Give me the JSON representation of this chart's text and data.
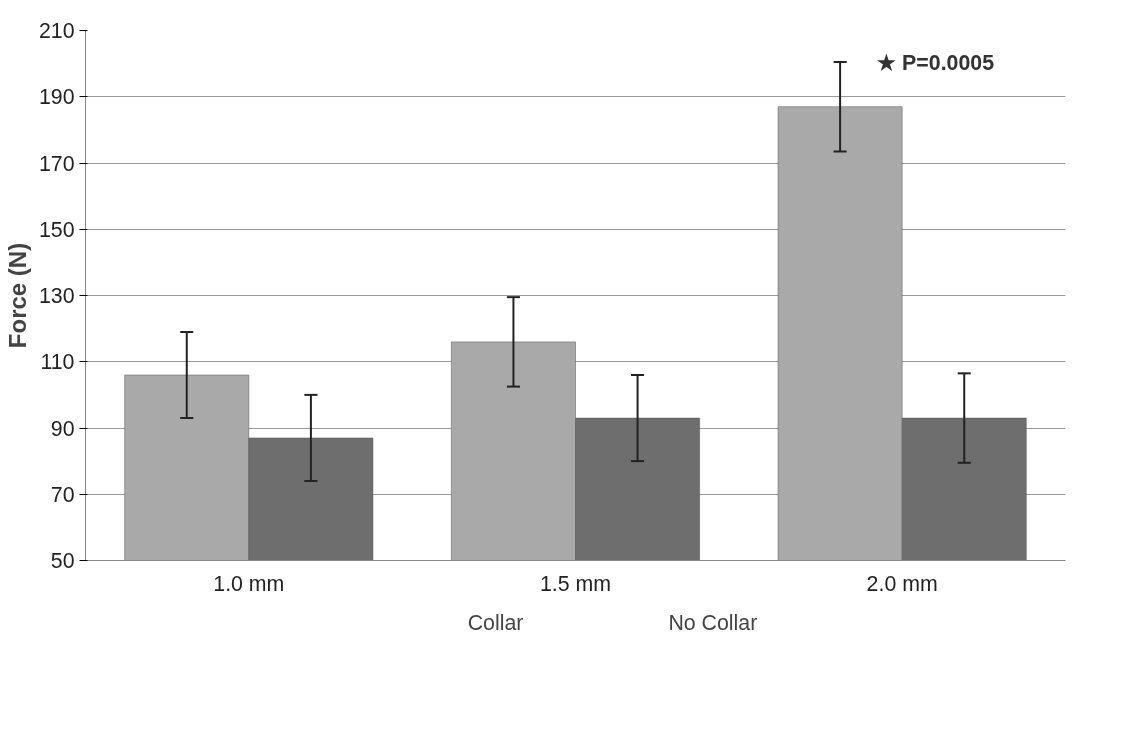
{
  "chart_data": {
    "type": "bar",
    "ylabel": "Force (N)",
    "categories": [
      "1.0 mm",
      "1.5 mm",
      "2.0 mm"
    ],
    "series": [
      {
        "name": "Collar",
        "color": "#a9a9a9",
        "values": [
          106,
          116,
          187
        ],
        "errors": [
          13,
          13.5,
          13.5
        ]
      },
      {
        "name": "No Collar",
        "color": "#6e6e6e",
        "values": [
          87,
          93,
          93
        ],
        "errors": [
          13,
          13,
          13.5
        ]
      }
    ],
    "ylim": [
      50,
      210
    ],
    "yticks": [
      50,
      70,
      90,
      110,
      130,
      150,
      170,
      190,
      210
    ],
    "grid": "y",
    "legend": "bottom",
    "annotations": [
      "★ P=0.0005"
    ]
  }
}
